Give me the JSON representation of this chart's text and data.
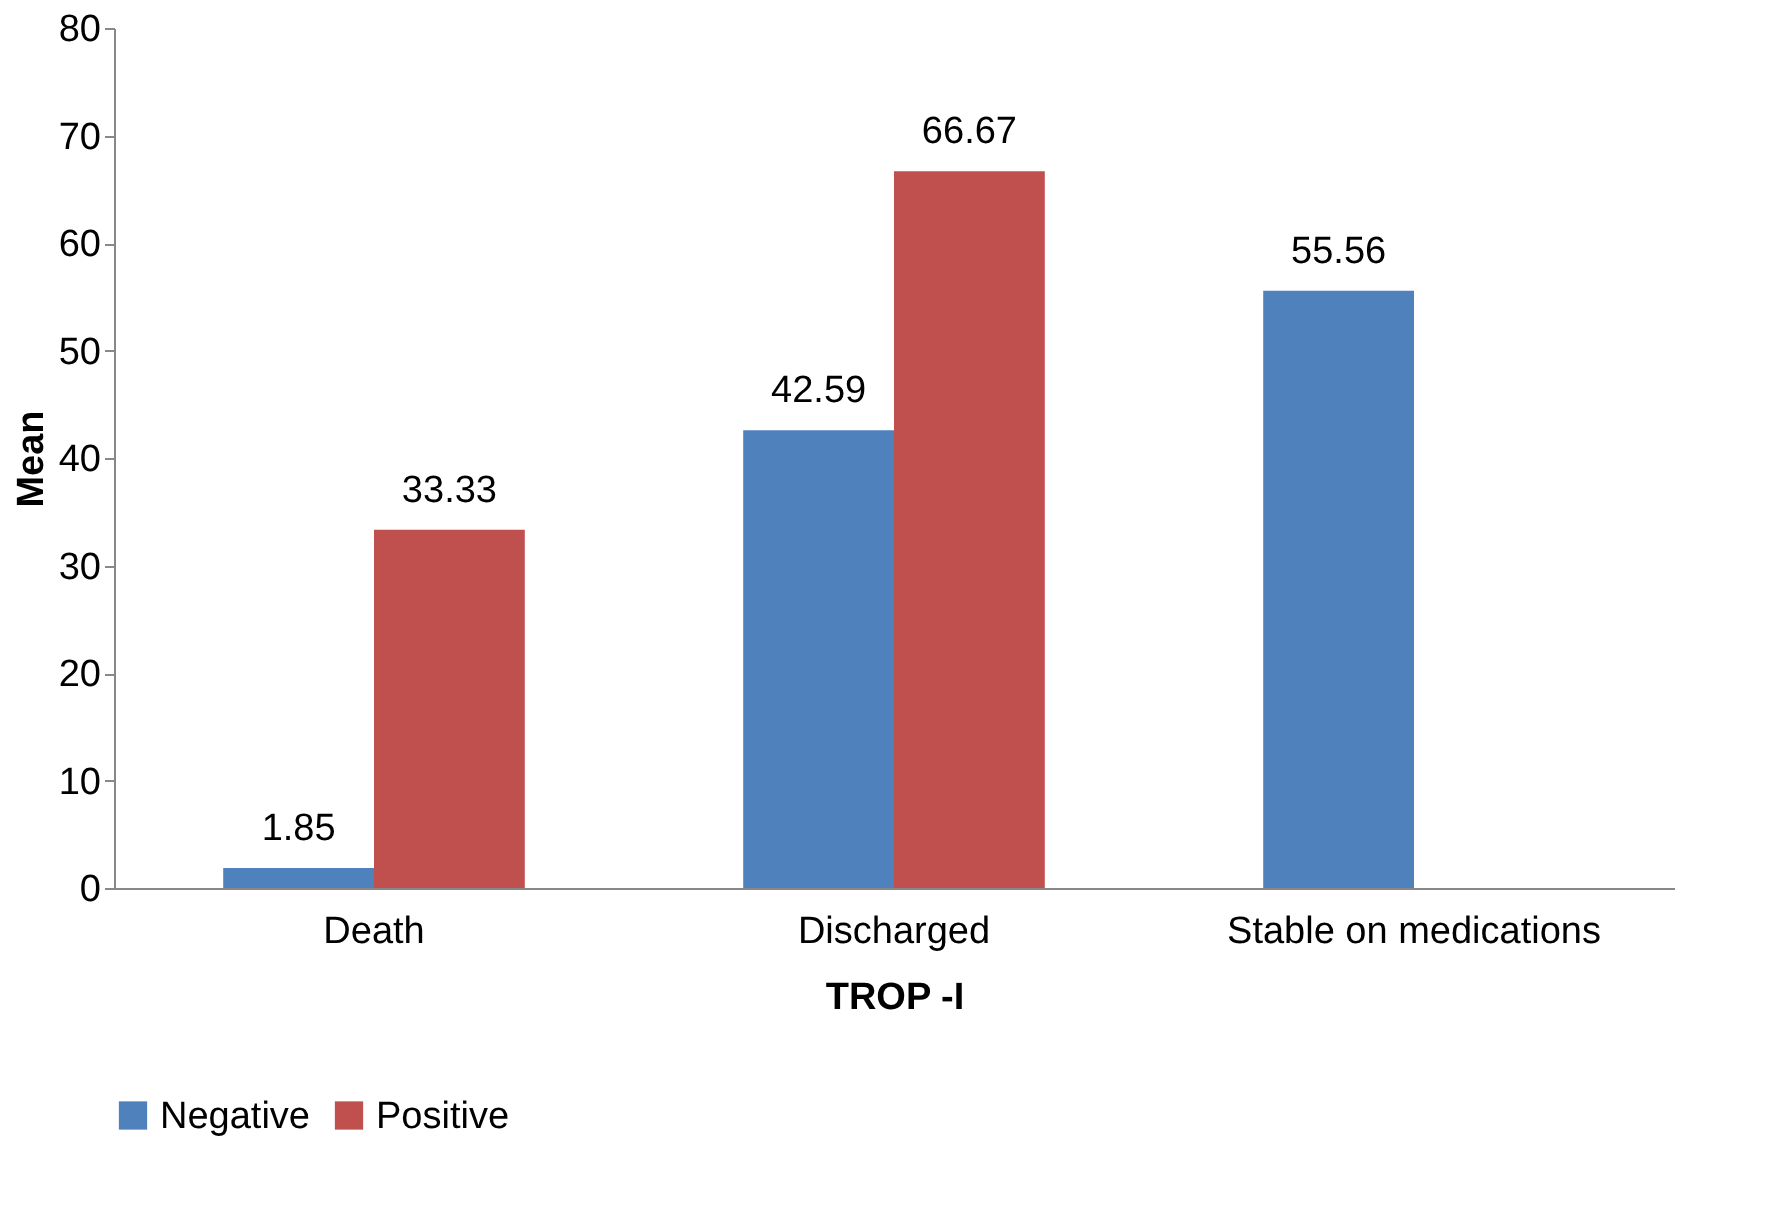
{
  "chart_data": {
    "type": "bar",
    "xlabel": "TROP -I",
    "ylabel": "Mean",
    "categories": [
      "Death",
      "Discharged",
      "Stable on medications"
    ],
    "series": [
      {
        "name": "Negative",
        "color": "#4f81bd",
        "values": [
          1.85,
          42.59,
          55.56
        ]
      },
      {
        "name": "Positive",
        "color": "#c0504d",
        "values": [
          33.33,
          66.67,
          null
        ]
      }
    ],
    "ylim": [
      0,
      80
    ],
    "yticks": [
      0,
      10,
      20,
      30,
      40,
      50,
      60,
      70,
      80
    ],
    "data_labels": true,
    "grid": false,
    "legend": "bottom"
  }
}
